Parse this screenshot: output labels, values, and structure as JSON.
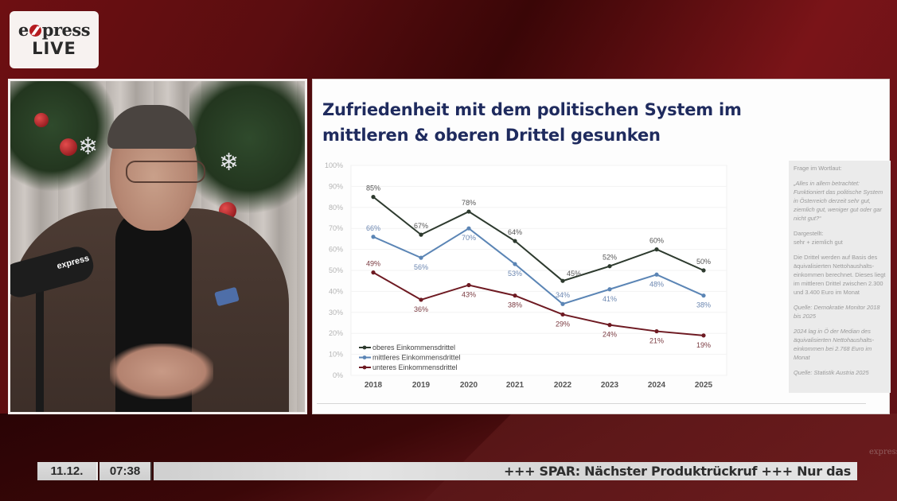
{
  "broadcast": {
    "logo": {
      "word_prefix": "e",
      "word_suffix": "press",
      "live": "LIVE"
    },
    "mic_label": "express",
    "corner_watermark": "express"
  },
  "slide": {
    "title_line1": "Zufriedenheit mit dem politischen System im",
    "title_line2": "mittleren & oberen Drittel gesunken",
    "notes": [
      {
        "text": "Frage im Wortlaut:",
        "italic": false
      },
      {
        "text": "„Alles in allem betrachtet: Funktioniert das politische System in Österreich derzeit sehr gut, ziemlich gut, weniger gut oder gar nicht gut?“",
        "italic": true
      },
      {
        "text": "Dargestellt:\nsehr + ziemlich gut",
        "italic": false
      },
      {
        "text": "Die Drittel werden auf Basis des äquivalisierten Nettohaushalts-einkommen berechnet. Dieses liegt im mittleren Drittel zwischen 2.300 und 3.400 Euro im Monat",
        "italic": false
      },
      {
        "text": "Quelle: Demokratie Monitor 2018 bis 2025",
        "italic": true
      },
      {
        "text": "2024 lag in Ö der Median des äquivalisierten Nettohaushalts-einkommen bei 2.768 Euro im Monat",
        "italic": true
      },
      {
        "text": "Quelle: Statistik Austria 2025",
        "italic": true
      }
    ]
  },
  "chart_data": {
    "type": "line",
    "title": "Zufriedenheit mit dem politischen System im mittleren & oberen Drittel gesunken",
    "xlabel": "",
    "ylabel": "",
    "categories": [
      "2018",
      "2019",
      "2020",
      "2021",
      "2022",
      "2023",
      "2024",
      "2025"
    ],
    "yticks": [
      "0%",
      "10%",
      "20%",
      "30%",
      "40%",
      "50%",
      "60%",
      "70%",
      "80%",
      "90%",
      "100%"
    ],
    "ylim": [
      0,
      100
    ],
    "grid": true,
    "legend_position": "lower-left",
    "series": [
      {
        "name": "oberes Einkommensdrittel",
        "color": "#2d3a2e",
        "label_color": "#555555",
        "values": [
          85,
          67,
          78,
          64,
          45,
          52,
          60,
          50
        ],
        "label_pos": [
          "above",
          "above",
          "above",
          "above",
          "right",
          "above",
          "above",
          "above"
        ]
      },
      {
        "name": "mittleres Einkommensdrittel",
        "color": "#5b85b5",
        "label_color": "#6b86b0",
        "values": [
          66,
          56,
          70,
          53,
          34,
          41,
          48,
          38
        ],
        "label_pos": [
          "above",
          "below",
          "below",
          "below",
          "above",
          "below",
          "below",
          "below"
        ]
      },
      {
        "name": "unteres Einkommensdrittel",
        "color": "#6e1a22",
        "label_color": "#7a3a40",
        "values": [
          49,
          36,
          43,
          38,
          29,
          24,
          21,
          19
        ],
        "label_pos": [
          "above",
          "below",
          "below",
          "below",
          "below",
          "below",
          "below",
          "below"
        ]
      }
    ]
  },
  "ticker": {
    "date": "11.12.",
    "time": "07:38",
    "headline": "+++ SPAR: Nächster Produktrückruf  +++ Nur das"
  }
}
